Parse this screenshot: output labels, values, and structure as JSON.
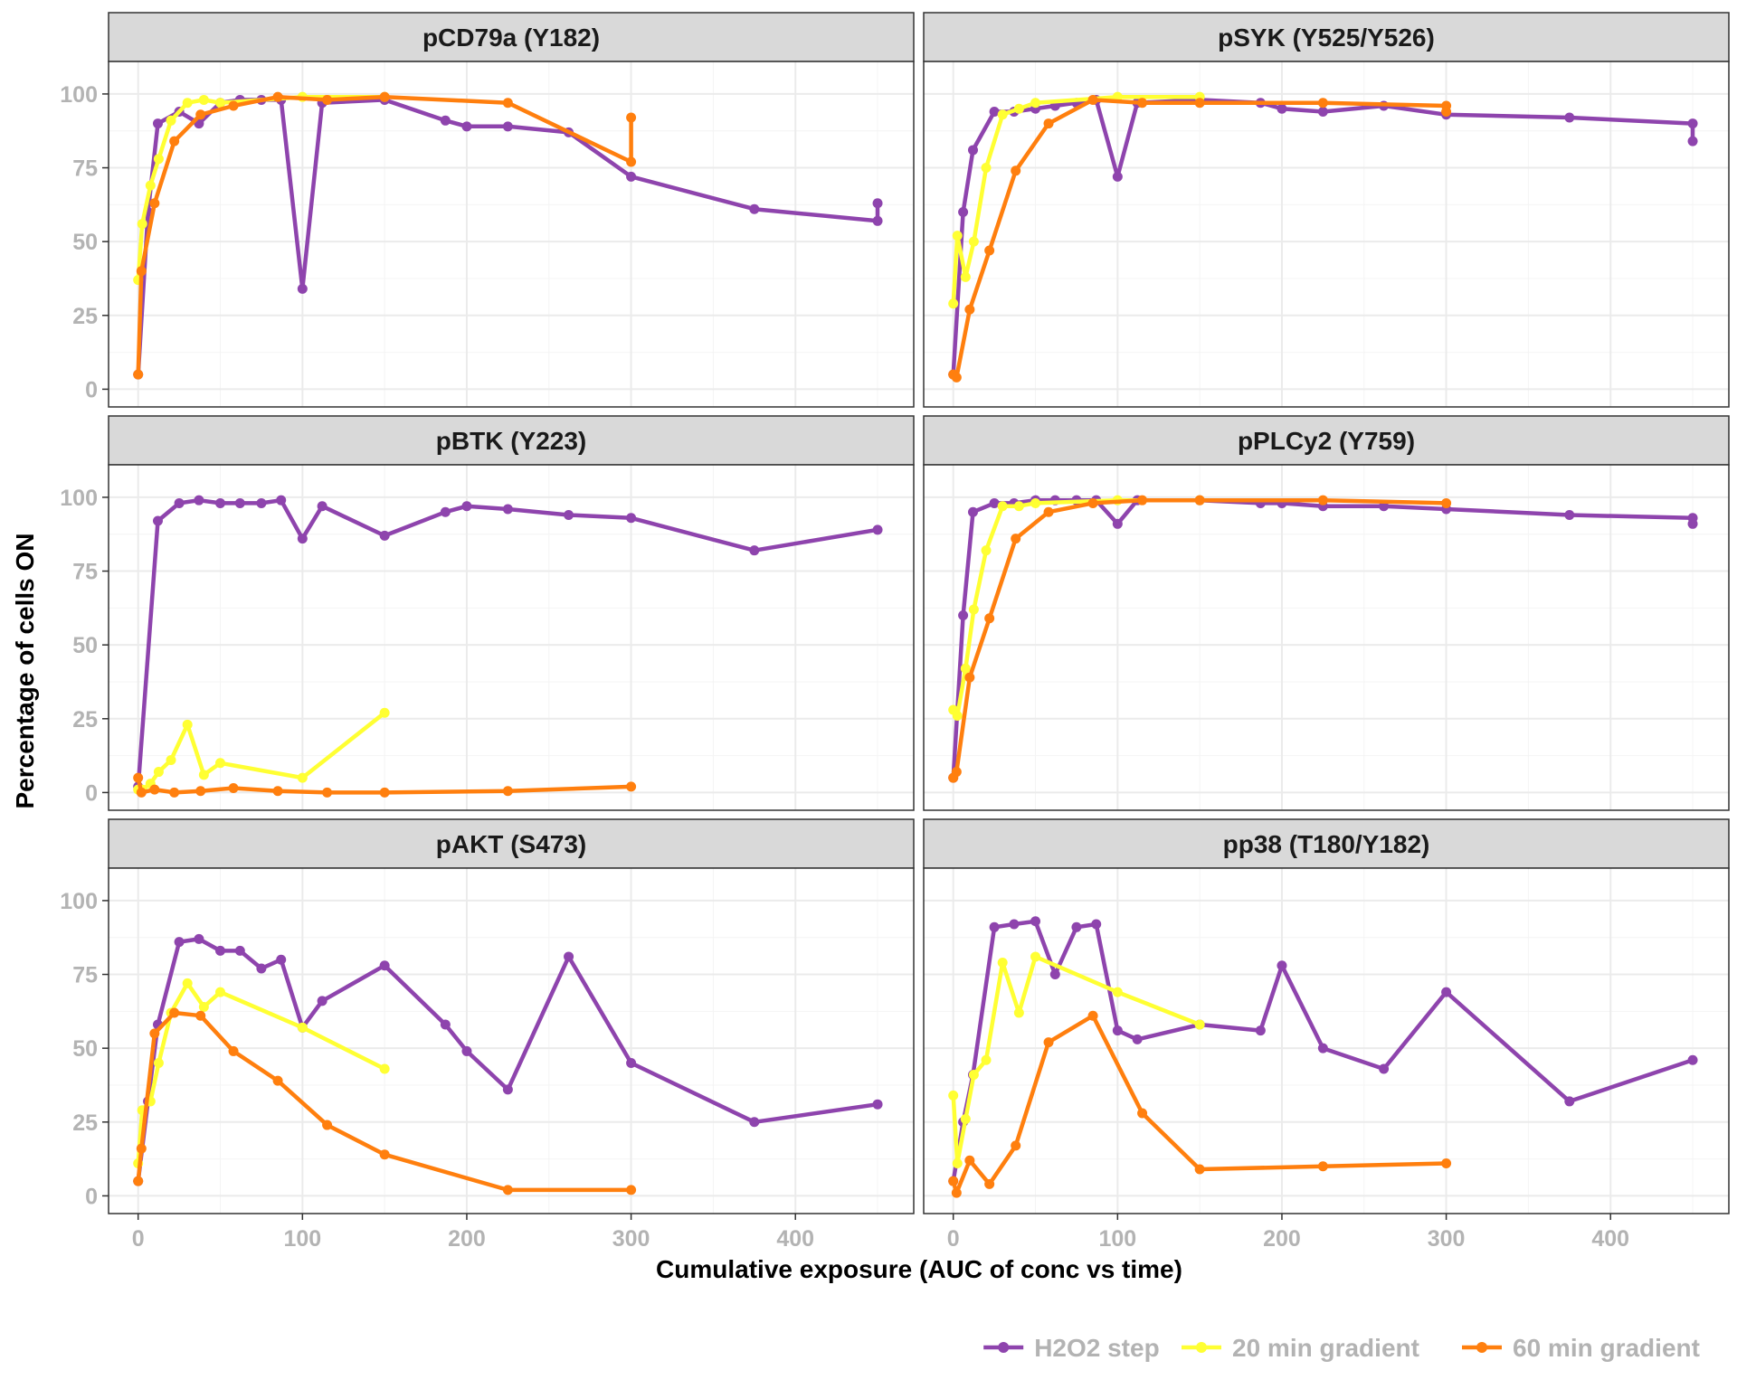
{
  "colors": {
    "H2O2 step": "#8E44AD",
    "20 min gradient": "#FFFF33",
    "60 min gradient": "#FF7F0E",
    "strip_bg": "#d9d9d9",
    "grid": "#ebebeb",
    "panel_border": "#333333"
  },
  "chart_data": {
    "type": "line",
    "layout": "facet grid, 3 rows x 2 columns",
    "xlabel": "Cumulative exposure (AUC of conc vs time)",
    "ylabel": "Percentage of cells ON",
    "xlim": [
      -18,
      472
    ],
    "ylim": [
      -6,
      111
    ],
    "x_ticks": [
      0,
      100,
      200,
      300,
      400
    ],
    "y_ticks": [
      0,
      25,
      50,
      75,
      100
    ],
    "grid": true,
    "legend_position": "bottom-right",
    "legend": [
      "H2O2 step",
      "20 min gradient",
      "60 min gradient"
    ],
    "panels": [
      {
        "title": "pCD79a (Y182)",
        "series": [
          {
            "name": "H2O2 step",
            "x": [
              0,
              6,
              12,
              25,
              37,
              50,
              62,
              75,
              87,
              100,
              112,
              150,
              187,
              200,
              225,
              262,
              300,
              375,
              450,
              450
            ],
            "y": [
              5,
              60,
              90,
              94,
              90,
              97,
              98,
              98,
              98,
              34,
              97,
              98,
              91,
              89,
              89,
              87,
              72,
              61,
              57,
              63
            ]
          },
          {
            "name": "20 min gradient",
            "x": [
              0,
              2.5,
              7.5,
              12.5,
              20,
              30,
              40,
              50,
              100,
              150
            ],
            "y": [
              37,
              56,
              69,
              78,
              91,
              97,
              98,
              97,
              99,
              99
            ]
          },
          {
            "name": "60 min gradient",
            "x": [
              0,
              2,
              10,
              22,
              38,
              58,
              85,
              115,
              150,
              225,
              300,
              300
            ],
            "y": [
              5,
              40,
              63,
              84,
              93,
              96,
              99,
              98,
              99,
              97,
              77,
              92
            ]
          }
        ]
      },
      {
        "title": "pSYK (Y525/Y526)",
        "series": [
          {
            "name": "H2O2 step",
            "x": [
              0,
              6,
              12,
              25,
              37,
              50,
              62,
              75,
              87,
              100,
              112,
              150,
              187,
              200,
              225,
              262,
              300,
              375,
              450,
              450
            ],
            "y": [
              5,
              60,
              81,
              94,
              94,
              95,
              96,
              97,
              98,
              72,
              97,
              98,
              97,
              95,
              94,
              96,
              93,
              92,
              90,
              84
            ]
          },
          {
            "name": "20 min gradient",
            "x": [
              0,
              2.5,
              7.5,
              12.5,
              20,
              30,
              40,
              50,
              100,
              150
            ],
            "y": [
              29,
              52,
              38,
              50,
              75,
              93,
              95,
              97,
              99,
              99
            ]
          },
          {
            "name": "60 min gradient",
            "x": [
              0,
              2,
              10,
              22,
              38,
              58,
              85,
              115,
              150,
              225,
              300,
              300
            ],
            "y": [
              5,
              4,
              27,
              47,
              74,
              90,
              98,
              97,
              97,
              97,
              96,
              94
            ]
          }
        ]
      },
      {
        "title": "pBTK (Y223)",
        "series": [
          {
            "name": "H2O2 step",
            "x": [
              0,
              12,
              25,
              37,
              50,
              62,
              75,
              87,
              100,
              112,
              150,
              187,
              200,
              225,
              262,
              300,
              375,
              450
            ],
            "y": [
              2,
              92,
              98,
              99,
              98,
              98,
              98,
              99,
              86,
              97,
              87,
              95,
              97,
              96,
              94,
              93,
              82,
              89
            ]
          },
          {
            "name": "20 min gradient",
            "x": [
              0,
              2.5,
              7.5,
              12.5,
              20,
              30,
              40,
              50,
              100,
              150
            ],
            "y": [
              1,
              1,
              3,
              7,
              11,
              23,
              6,
              10,
              5,
              27
            ]
          },
          {
            "name": "60 min gradient",
            "x": [
              0,
              2,
              10,
              22,
              38,
              58,
              85,
              115,
              150,
              225,
              300
            ],
            "y": [
              5,
              0,
              1,
              0,
              0.5,
              1.5,
              0.5,
              0,
              0,
              0.5,
              2
            ]
          }
        ]
      },
      {
        "title": "pPLCy2 (Y759)",
        "series": [
          {
            "name": "H2O2 step",
            "x": [
              0,
              6,
              12,
              25,
              37,
              50,
              62,
              75,
              87,
              100,
              112,
              150,
              187,
              200,
              225,
              262,
              300,
              375,
              450,
              450
            ],
            "y": [
              5,
              60,
              95,
              98,
              98,
              99,
              99,
              99,
              99,
              91,
              99,
              99,
              98,
              98,
              97,
              97,
              96,
              94,
              93,
              91
            ]
          },
          {
            "name": "20 min gradient",
            "x": [
              0,
              2.5,
              7.5,
              12.5,
              20,
              30,
              40,
              50,
              100,
              150
            ],
            "y": [
              28,
              26,
              42,
              62,
              82,
              97,
              97,
              98,
              99,
              99
            ]
          },
          {
            "name": "60 min gradient",
            "x": [
              0,
              2,
              10,
              22,
              38,
              58,
              85,
              115,
              150,
              225,
              300
            ],
            "y": [
              5,
              7,
              39,
              59,
              86,
              95,
              98,
              99,
              99,
              99,
              98
            ]
          }
        ]
      },
      {
        "title": "pAKT (S473)",
        "series": [
          {
            "name": "H2O2 step",
            "x": [
              0,
              6,
              12,
              25,
              37,
              50,
              62,
              75,
              87,
              100,
              112,
              150,
              187,
              200,
              225,
              262,
              300,
              375,
              450
            ],
            "y": [
              5,
              32,
              58,
              86,
              87,
              83,
              83,
              77,
              80,
              57,
              66,
              78,
              58,
              49,
              36,
              81,
              45,
              25,
              31
            ]
          },
          {
            "name": "20 min gradient",
            "x": [
              0,
              2.5,
              7.5,
              12.5,
              20,
              30,
              40,
              50,
              100,
              150
            ],
            "y": [
              11,
              29,
              32,
              45,
              62,
              72,
              64,
              69,
              57,
              43
            ]
          },
          {
            "name": "60 min gradient",
            "x": [
              0,
              2,
              10,
              22,
              38,
              58,
              85,
              115,
              150,
              225,
              300
            ],
            "y": [
              5,
              16,
              55,
              62,
              61,
              49,
              39,
              24,
              14,
              2,
              2
            ]
          }
        ]
      },
      {
        "title": "pp38 (T180/Y182)",
        "series": [
          {
            "name": "H2O2 step",
            "x": [
              0,
              6,
              12,
              25,
              37,
              50,
              62,
              75,
              87,
              100,
              112,
              150,
              187,
              200,
              225,
              262,
              300,
              375,
              450
            ],
            "y": [
              5,
              25,
              41,
              91,
              92,
              93,
              75,
              91,
              92,
              56,
              53,
              58,
              56,
              78,
              50,
              43,
              69,
              32,
              46
            ]
          },
          {
            "name": "20 min gradient",
            "x": [
              0,
              2.5,
              7.5,
              12.5,
              20,
              30,
              40,
              50,
              100,
              150
            ],
            "y": [
              34,
              11,
              26,
              41,
              46,
              79,
              62,
              81,
              69,
              58
            ]
          },
          {
            "name": "60 min gradient",
            "x": [
              0,
              2,
              10,
              22,
              38,
              58,
              85,
              115,
              150,
              225,
              300
            ],
            "y": [
              5,
              1,
              12,
              4,
              17,
              52,
              61,
              28,
              9,
              10,
              11
            ]
          }
        ]
      }
    ]
  }
}
